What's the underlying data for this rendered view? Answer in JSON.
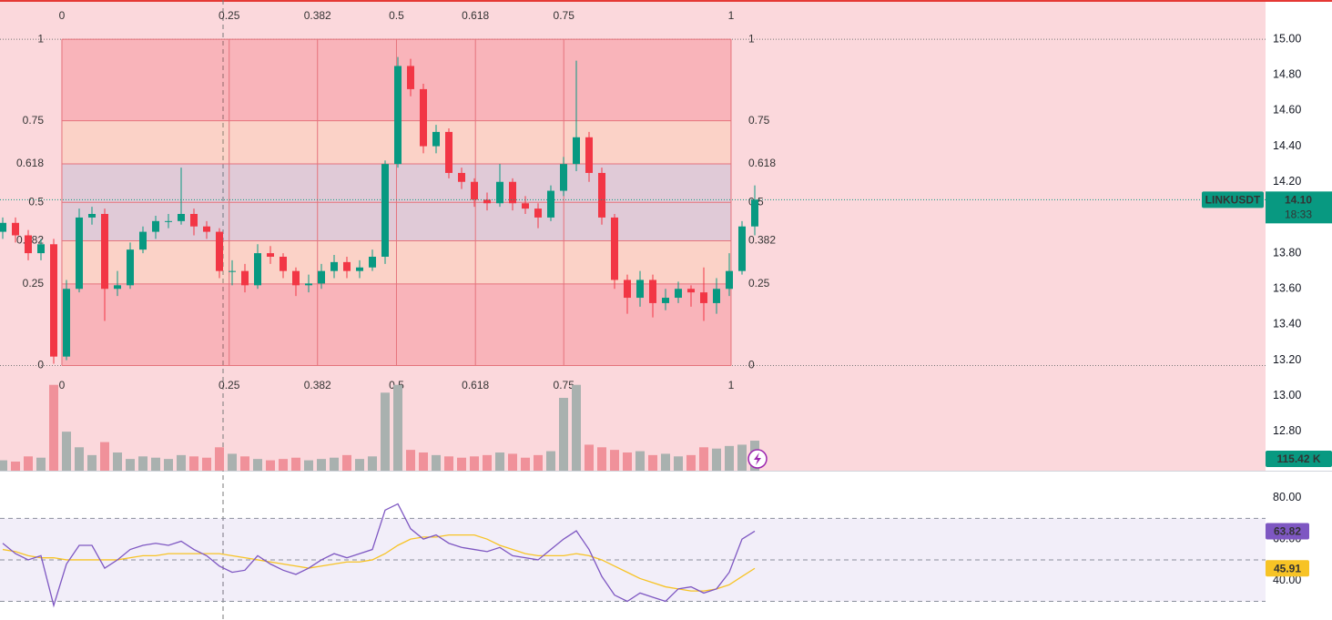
{
  "chart_data": {
    "type": "candlestick",
    "symbol": "LINKUSDT",
    "countdown": "18:33",
    "open": [
      13.92,
      13.97,
      13.9,
      13.8,
      13.85,
      13.22,
      13.6,
      14.0,
      14.02,
      13.6,
      13.62,
      13.82,
      13.92,
      13.98,
      13.98,
      14.02,
      13.95,
      13.92,
      13.7,
      13.7,
      13.62,
      13.8,
      13.78,
      13.7,
      13.62,
      13.63,
      13.7,
      13.75,
      13.7,
      13.72,
      13.78,
      14.3,
      14.85,
      14.72,
      14.4,
      14.48,
      14.25,
      14.2,
      14.1,
      14.08,
      14.2,
      14.08,
      14.05,
      14.0,
      14.15,
      14.3,
      14.45,
      14.25,
      14.0,
      13.65,
      13.55,
      13.65,
      13.52,
      13.55,
      13.6,
      13.58,
      13.52,
      13.6,
      13.7,
      13.95
    ],
    "high": [
      14.0,
      14.0,
      13.93,
      13.88,
      13.88,
      13.65,
      14.05,
      14.06,
      14.05,
      13.7,
      13.86,
      13.95,
      14.01,
      14.02,
      14.28,
      14.05,
      13.98,
      13.94,
      13.76,
      13.74,
      13.85,
      13.84,
      13.8,
      13.72,
      13.68,
      13.74,
      13.79,
      13.78,
      13.76,
      13.82,
      14.32,
      14.9,
      14.89,
      14.75,
      14.52,
      14.5,
      14.28,
      14.22,
      14.14,
      14.3,
      14.22,
      14.12,
      14.08,
      14.18,
      14.34,
      14.88,
      14.48,
      14.28,
      14.02,
      13.68,
      13.7,
      13.68,
      13.6,
      13.64,
      13.62,
      13.72,
      13.66,
      13.8,
      13.98,
      14.18
    ],
    "low": [
      13.88,
      13.86,
      13.76,
      13.76,
      13.18,
      13.2,
      13.58,
      13.96,
      13.42,
      13.56,
      13.6,
      13.8,
      13.88,
      13.94,
      13.96,
      13.9,
      13.88,
      13.66,
      13.62,
      13.58,
      13.6,
      13.74,
      13.66,
      13.56,
      13.58,
      13.6,
      13.66,
      13.66,
      13.66,
      13.7,
      13.74,
      14.28,
      14.68,
      14.36,
      14.36,
      14.22,
      14.16,
      14.06,
      14.04,
      14.06,
      14.04,
      14.02,
      13.94,
      13.98,
      14.12,
      14.26,
      14.2,
      13.96,
      13.6,
      13.46,
      13.5,
      13.44,
      13.48,
      13.52,
      13.5,
      13.42,
      13.46,
      13.56,
      13.68,
      13.9
    ],
    "close": [
      13.97,
      13.9,
      13.8,
      13.85,
      13.22,
      13.6,
      14.0,
      14.02,
      13.6,
      13.62,
      13.82,
      13.92,
      13.98,
      13.98,
      14.02,
      13.95,
      13.92,
      13.7,
      13.7,
      13.62,
      13.8,
      13.78,
      13.7,
      13.62,
      13.63,
      13.7,
      13.75,
      13.7,
      13.72,
      13.78,
      14.3,
      14.85,
      14.72,
      14.4,
      14.48,
      14.25,
      14.2,
      14.1,
      14.08,
      14.2,
      14.08,
      14.05,
      14.0,
      14.15,
      14.3,
      14.45,
      14.25,
      14.0,
      13.65,
      13.55,
      13.65,
      13.52,
      13.55,
      13.6,
      13.58,
      13.52,
      13.6,
      13.7,
      13.95,
      14.1
    ],
    "up_color": "#089981",
    "down_color": "#f23645",
    "ylim": [
      12.58,
      15.22
    ],
    "yticks": [
      {
        "value": 15.0,
        "label": "15.00"
      },
      {
        "value": 14.8,
        "label": "14.80"
      },
      {
        "value": 14.6,
        "label": "14.60"
      },
      {
        "value": 14.4,
        "label": "14.40"
      },
      {
        "value": 14.2,
        "label": "14.20"
      },
      {
        "value": 14.0,
        "label": "14.00"
      },
      {
        "value": 13.8,
        "label": "13.80"
      },
      {
        "value": 13.6,
        "label": "13.60"
      },
      {
        "value": 13.4,
        "label": "13.40"
      },
      {
        "value": 13.2,
        "label": "13.20"
      },
      {
        "value": 13.0,
        "label": "13.00"
      },
      {
        "value": 12.8,
        "label": "12.80"
      }
    ],
    "last_price": {
      "value": 14.1,
      "label": "14.10"
    },
    "fib_levels": [
      0,
      0.25,
      0.382,
      0.5,
      0.618,
      0.75,
      1
    ],
    "fib_price_range": [
      13.17,
      15.0
    ],
    "fib_time_range": [
      4.64,
      57.14
    ],
    "fib_colors": [
      "rgba(242,54,69,0.22)",
      "rgba(255,170,60,0.13)",
      "rgba(90,130,190,0.16)",
      "rgba(90,130,190,0.16)",
      "rgba(255,170,60,0.13)",
      "rgba(242,54,69,0.22)"
    ],
    "fib_line_color": "#e5737c",
    "volume": {
      "values": [
        40,
        35,
        55,
        50,
        330,
        150,
        90,
        60,
        110,
        70,
        45,
        55,
        50,
        45,
        60,
        55,
        50,
        90,
        65,
        55,
        45,
        40,
        45,
        50,
        40,
        45,
        50,
        60,
        45,
        55,
        300,
        330,
        80,
        70,
        60,
        55,
        50,
        55,
        60,
        70,
        65,
        50,
        60,
        75,
        280,
        330,
        100,
        90,
        80,
        70,
        75,
        60,
        65,
        55,
        60,
        90,
        85,
        95,
        100,
        115.42
      ],
      "ylim": [
        0,
        350
      ],
      "up_color": "#a9b1af",
      "down_color": "#f0919a",
      "value_label": "115.42 K"
    },
    "rsi": {
      "values": [
        58,
        53,
        50,
        52,
        28,
        48,
        57,
        57,
        46,
        50,
        55,
        57,
        58,
        57,
        59,
        55,
        52,
        47,
        44,
        45,
        52,
        48,
        45,
        43,
        46,
        50,
        53,
        51,
        53,
        55,
        74,
        77,
        65,
        60,
        62,
        58,
        56,
        55,
        54,
        56,
        52,
        51,
        50,
        55,
        60,
        64,
        55,
        42,
        33,
        30,
        34,
        32,
        30,
        36,
        37,
        34,
        36,
        44,
        60,
        63.82
      ],
      "color": "#7e57c2",
      "ylim": [
        21,
        93
      ],
      "yticks": [
        {
          "value": 80,
          "label": "80.00"
        },
        {
          "value": 60,
          "label": "60.00"
        },
        {
          "value": 40,
          "label": "40.00"
        }
      ],
      "bands": [
        70,
        50,
        30
      ],
      "band_fill": "rgba(126,87,194,0.1)"
    },
    "rsi_ma": {
      "values": [
        55,
        54,
        52,
        51,
        51,
        50,
        50,
        50,
        50,
        50,
        51,
        52,
        52,
        53,
        53,
        53,
        53,
        53,
        52,
        51,
        50,
        49,
        48,
        47,
        46,
        47,
        48,
        49,
        49,
        50,
        53,
        57,
        60,
        61,
        61,
        62,
        62,
        62,
        60,
        57,
        55,
        53,
        52,
        52,
        52,
        53,
        52,
        50,
        47,
        44,
        41,
        39,
        37,
        36,
        35,
        35,
        36,
        38,
        42,
        45.91
      ],
      "color": "#f7c325"
    }
  }
}
